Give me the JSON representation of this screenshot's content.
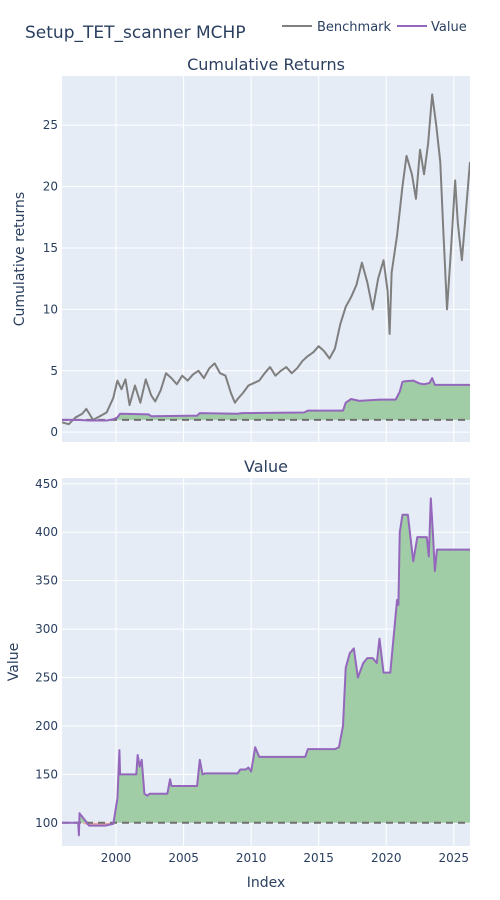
{
  "title": "Setup_TET_scanner MCHP",
  "legend": [
    "Benchmark",
    "Value"
  ],
  "colors": {
    "benchmark": "#7f7f7f",
    "value": "#9467bd",
    "fill_positive": "#a0cca6",
    "fill_negative": "#e8a5a5",
    "plot_bg": "#e5ecf6",
    "baseline": "#707070"
  },
  "chart_data": [
    {
      "type": "line",
      "title": "Cumulative Returns",
      "xlabel": "",
      "ylabel": "Cumulative returns",
      "xlim": [
        1996.0,
        2026.2
      ],
      "ylim": [
        -0.8,
        29
      ],
      "yticks": [
        0,
        5,
        10,
        15,
        20,
        25
      ],
      "baseline": 1,
      "grid": true,
      "legend": "top-right",
      "series": [
        {
          "name": "Benchmark",
          "x": [
            1996.0,
            1996.5,
            1997.0,
            1997.5,
            1997.8,
            1998.3,
            1998.8,
            1999.3,
            1999.8,
            2000.1,
            2000.4,
            2000.7,
            2001.0,
            2001.4,
            2001.8,
            2002.2,
            2002.6,
            2002.9,
            2003.3,
            2003.7,
            2004.1,
            2004.5,
            2004.9,
            2005.3,
            2005.7,
            2006.1,
            2006.5,
            2006.9,
            2007.3,
            2007.7,
            2008.1,
            2008.5,
            2008.8,
            2009.0,
            2009.4,
            2009.8,
            2010.2,
            2010.6,
            2011.0,
            2011.4,
            2011.8,
            2012.2,
            2012.6,
            2013.0,
            2013.4,
            2013.8,
            2014.2,
            2014.6,
            2015.0,
            2015.4,
            2015.8,
            2016.2,
            2016.6,
            2017.0,
            2017.4,
            2017.8,
            2018.2,
            2018.6,
            2019.0,
            2019.4,
            2019.8,
            2020.1,
            2020.25,
            2020.4,
            2020.8,
            2021.2,
            2021.5,
            2021.9,
            2022.2,
            2022.5,
            2022.8,
            2023.1,
            2023.4,
            2023.7,
            2024.0,
            2024.2,
            2024.5,
            2024.8,
            2025.1,
            2025.3,
            2025.6,
            2025.9,
            2026.2
          ],
          "values": [
            0.8,
            0.65,
            1.2,
            1.5,
            1.9,
            1.0,
            1.3,
            1.6,
            2.8,
            4.2,
            3.5,
            4.3,
            2.2,
            3.8,
            2.4,
            4.3,
            3.0,
            2.5,
            3.4,
            4.8,
            4.4,
            3.9,
            4.6,
            4.2,
            4.7,
            5.0,
            4.4,
            5.2,
            5.6,
            4.8,
            4.6,
            3.2,
            2.4,
            2.7,
            3.2,
            3.8,
            4.0,
            4.2,
            4.8,
            5.3,
            4.6,
            5.0,
            5.3,
            4.8,
            5.2,
            5.8,
            6.2,
            6.5,
            7.0,
            6.6,
            6.0,
            6.8,
            8.8,
            10.2,
            11.0,
            12.0,
            13.8,
            12.2,
            10.0,
            12.5,
            14.0,
            11.5,
            8.0,
            13.0,
            16.0,
            20.0,
            22.5,
            21.0,
            19.0,
            23.0,
            21.0,
            23.5,
            27.5,
            25.0,
            22.0,
            17.0,
            10.0,
            15.0,
            20.5,
            17.0,
            14.0,
            18.0,
            22.0
          ]
        },
        {
          "name": "Value",
          "x": [
            1996.0,
            1997.2,
            1998.0,
            1999.3,
            1999.8,
            2000.1,
            2000.3,
            2002.4,
            2002.6,
            2006.0,
            2006.2,
            2009.0,
            2009.3,
            2013.9,
            2014.2,
            2016.8,
            2017.0,
            2017.4,
            2018.0,
            2019.5,
            2020.7,
            2021.0,
            2021.2,
            2021.4,
            2022.0,
            2022.5,
            2022.8,
            2023.2,
            2023.4,
            2023.6,
            2026.2
          ],
          "values": [
            1.0,
            1.0,
            0.95,
            0.95,
            1.05,
            1.2,
            1.5,
            1.45,
            1.3,
            1.35,
            1.55,
            1.5,
            1.55,
            1.6,
            1.75,
            1.75,
            2.4,
            2.7,
            2.55,
            2.65,
            2.65,
            3.3,
            4.1,
            4.15,
            4.2,
            3.95,
            3.9,
            4.0,
            4.4,
            3.85,
            3.85
          ]
        }
      ]
    },
    {
      "type": "area",
      "title": "Value",
      "xlabel": "Index",
      "ylabel": "Value",
      "xlim": [
        1996.0,
        2026.2
      ],
      "ylim": [
        76,
        456
      ],
      "yticks": [
        100,
        150,
        200,
        250,
        300,
        350,
        400,
        450
      ],
      "xticks": [
        2000,
        2005,
        2010,
        2015,
        2020,
        2025
      ],
      "baseline": 100,
      "grid": true,
      "series": [
        {
          "name": "Value",
          "x": [
            1996.0,
            1997.2,
            1997.25,
            1997.3,
            1997.35,
            1997.4,
            1998.0,
            1999.2,
            1999.8,
            2000.1,
            2000.25,
            2000.3,
            2001.5,
            2001.6,
            2001.75,
            2001.9,
            2002.1,
            2002.3,
            2002.5,
            2003.8,
            2004.0,
            2004.1,
            2006.0,
            2006.2,
            2006.4,
            2006.6,
            2009.0,
            2009.2,
            2009.6,
            2009.8,
            2010.0,
            2010.3,
            2010.6,
            2014.0,
            2014.2,
            2016.2,
            2016.5,
            2016.8,
            2017.0,
            2017.3,
            2017.6,
            2017.9,
            2018.3,
            2018.6,
            2019.0,
            2019.3,
            2019.5,
            2019.8,
            2020.3,
            2020.8,
            2020.9,
            2021.0,
            2021.2,
            2021.4,
            2021.6,
            2022.0,
            2022.3,
            2022.6,
            2023.0,
            2023.15,
            2023.3,
            2023.45,
            2023.6,
            2023.75,
            2026.2
          ],
          "values": [
            100,
            100,
            87,
            110,
            108,
            108,
            97,
            97,
            99,
            125,
            175,
            150,
            150,
            170,
            158,
            165,
            130,
            128,
            130,
            130,
            145,
            138,
            138,
            165,
            150,
            151,
            151,
            155,
            155,
            157,
            153,
            178,
            168,
            168,
            176,
            176,
            178,
            200,
            260,
            275,
            280,
            250,
            265,
            270,
            270,
            265,
            290,
            255,
            255,
            330,
            325,
            400,
            418,
            418,
            418,
            370,
            395,
            395,
            395,
            375,
            435,
            400,
            360,
            382,
            382
          ]
        }
      ]
    }
  ]
}
